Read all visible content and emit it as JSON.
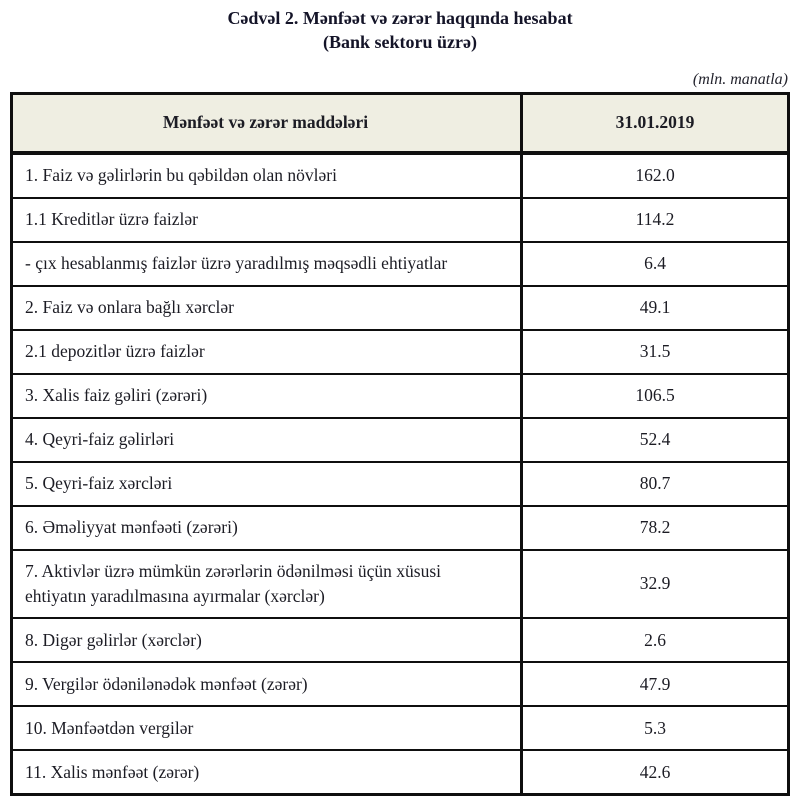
{
  "title": {
    "line1": "Cədvəl 2. Mənfəət və zərər haqqında hesabat",
    "line2": "(Bank sektoru üzrə)"
  },
  "unit_note": "(mln. manatla)",
  "table": {
    "columns": [
      "Mənfəət və zərər maddələri",
      "31.01.2019"
    ],
    "rows": [
      {
        "label": "1. Faiz və gəlirlərin bu qəbildən olan növləri",
        "value": "162.0"
      },
      {
        "label": "1.1 Kreditlər üzrə faizlər",
        "value": "114.2"
      },
      {
        "label": "-  çıx hesablanmış faizlər üzrə yaradılmış məqsədli ehtiyatlar",
        "value": "6.4"
      },
      {
        "label": "2. Faiz və onlara bağlı xərclər",
        "value": "49.1"
      },
      {
        "label": "2.1 depozitlər üzrə faizlər",
        "value": "31.5"
      },
      {
        "label": "3. Xalis faiz gəliri (zərəri)",
        "value": "106.5"
      },
      {
        "label": "4. Qeyri-faiz gəlirləri",
        "value": "52.4"
      },
      {
        "label": "5. Qeyri-faiz xərcləri",
        "value": "80.7"
      },
      {
        "label": "6. Əməliyyat mənfəəti (zərəri)",
        "value": "78.2"
      },
      {
        "label": "7. Aktivlər üzrə mümkün zərərlərin ödənilməsi üçün xüsusi ehtiyatın yaradılmasına ayırmalar (xərclər)",
        "value": "32.9"
      },
      {
        "label": "8. Digər gəlirlər (xərclər)",
        "value": "2.6"
      },
      {
        "label": "9. Vergilər ödənilənədək mənfəət (zərər)",
        "value": "47.9"
      },
      {
        "label": "10. Mənfəətdən vergilər",
        "value": "5.3"
      },
      {
        "label": "11. Xalis mənfəət (zərər)",
        "value": "42.6"
      }
    ]
  }
}
